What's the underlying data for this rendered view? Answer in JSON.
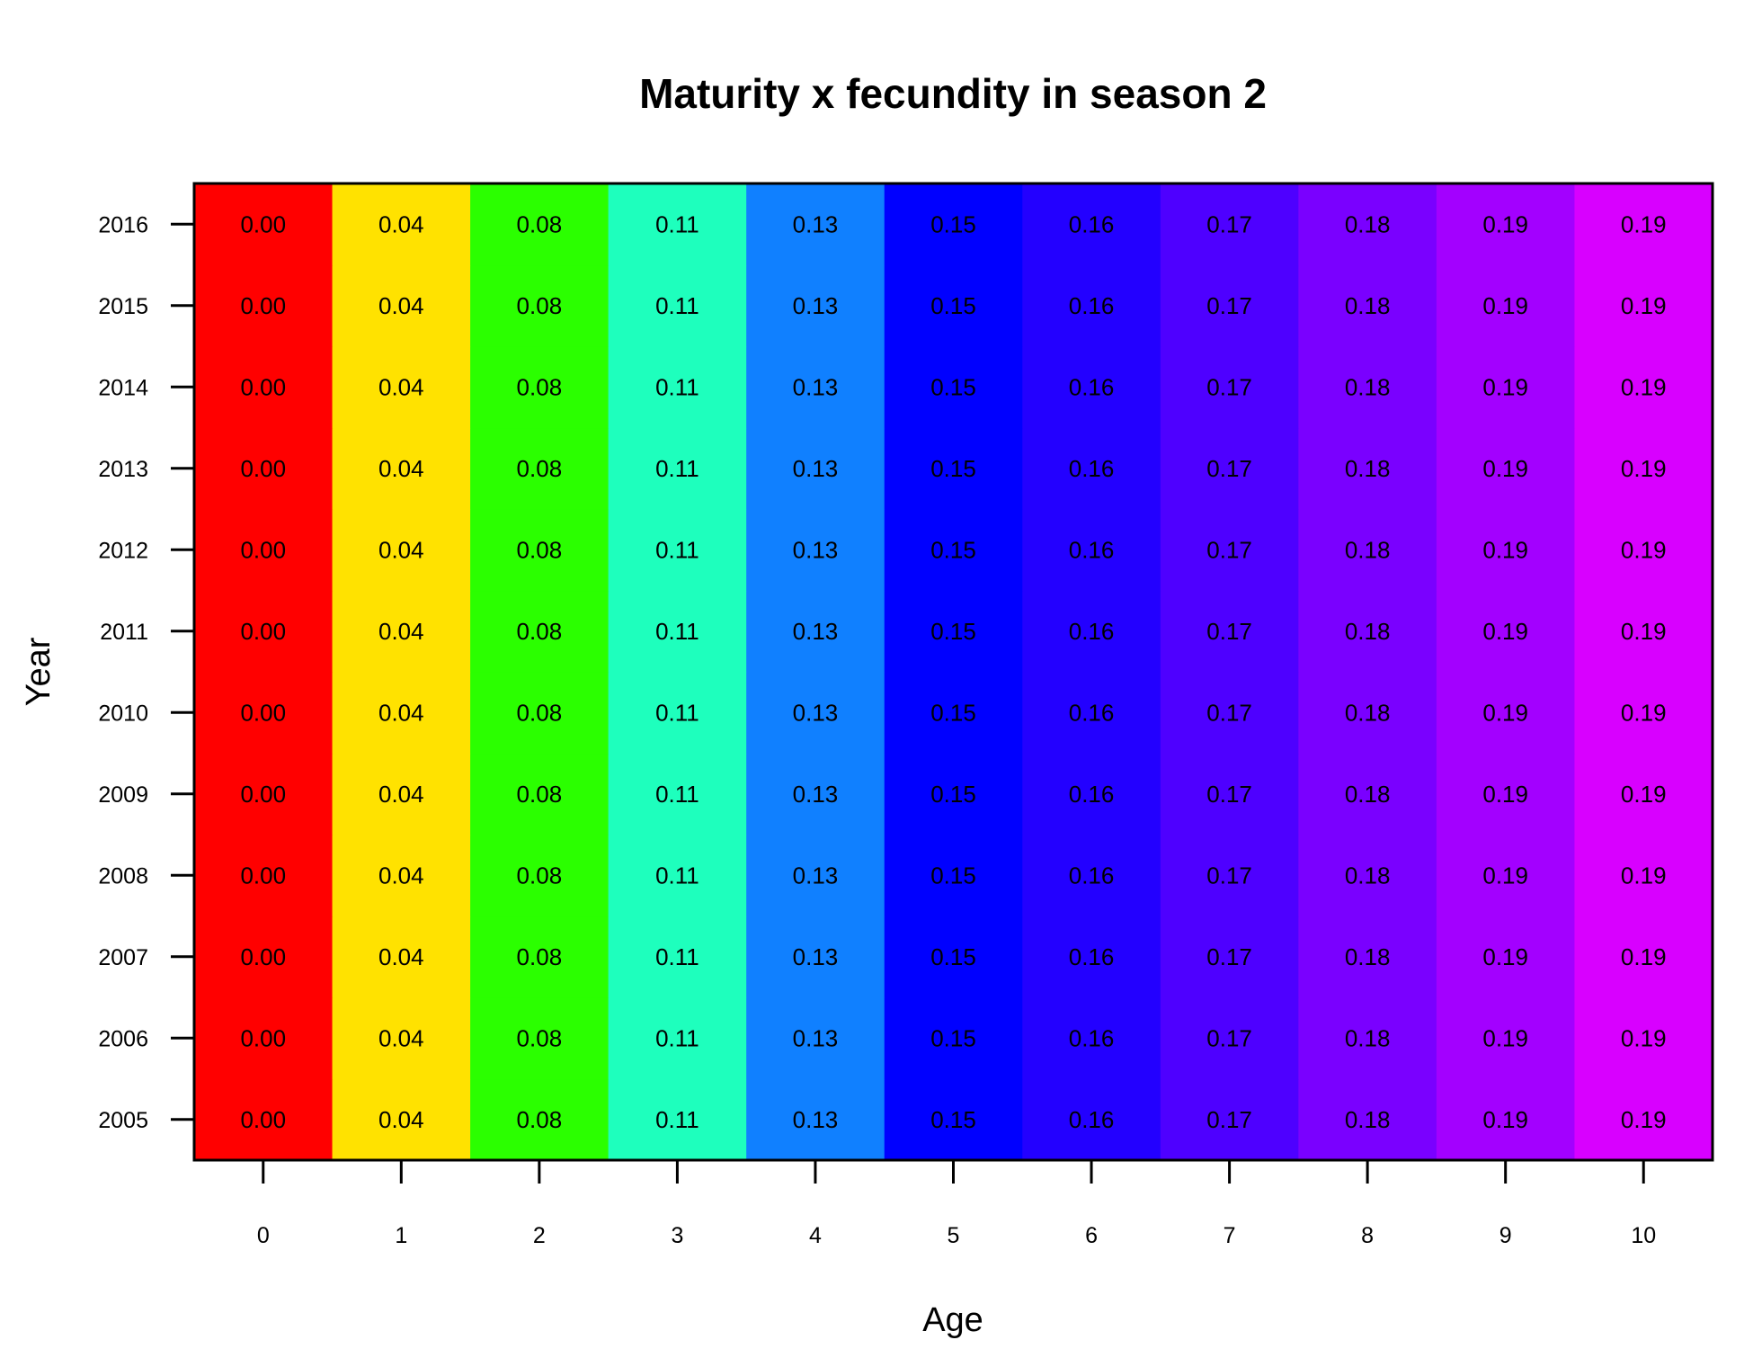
{
  "chart_data": {
    "type": "heatmap",
    "title": "Maturity x fecundity in season 2",
    "xlabel": "Age",
    "ylabel": "Year",
    "x": [
      0,
      1,
      2,
      3,
      4,
      5,
      6,
      7,
      8,
      9,
      10
    ],
    "x_tick_labels": [
      "0",
      "1",
      "2",
      "3",
      "4",
      "5",
      "6",
      "7",
      "8",
      "9",
      "10"
    ],
    "y": [
      2005,
      2006,
      2007,
      2008,
      2009,
      2010,
      2011,
      2012,
      2013,
      2014,
      2015,
      2016
    ],
    "y_tick_labels": [
      "2005",
      "2006",
      "2007",
      "2008",
      "2009",
      "2010",
      "2011",
      "2012",
      "2013",
      "2014",
      "2015",
      "2016"
    ],
    "values_by_age": [
      0.0,
      0.04,
      0.08,
      0.11,
      0.13,
      0.15,
      0.16,
      0.17,
      0.18,
      0.19,
      0.19
    ],
    "value_labels_by_age": [
      "0.00",
      "0.04",
      "0.08",
      "0.11",
      "0.13",
      "0.15",
      "0.16",
      "0.17",
      "0.18",
      "0.19",
      "0.19"
    ],
    "colors_by_age": [
      "#ff0000",
      "#ffe200",
      "#2bff00",
      "#1effbd",
      "#1080ff",
      "#0000ff",
      "#2300ff",
      "#4e00ff",
      "#7a00ff",
      "#a300ff",
      "#d800ff"
    ],
    "grid": false,
    "legend": "none"
  }
}
